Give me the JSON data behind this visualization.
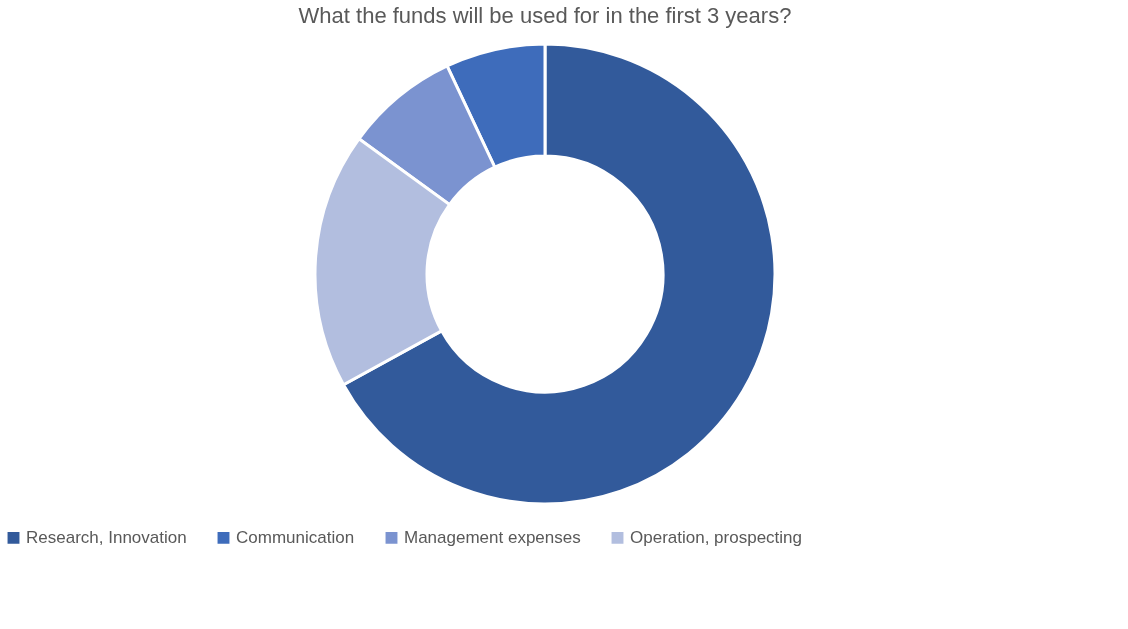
{
  "chart_data": {
    "type": "donut",
    "title": "What the funds will be used for in the first 3 years?",
    "categories": [
      "Research, Innovation",
      "Communication",
      "Management expenses",
      "Operation, prospecting"
    ],
    "values": [
      67,
      7,
      8,
      18
    ],
    "colors": [
      "#325a9b",
      "#3e6cbb",
      "#7b93d0",
      "#b2bedf"
    ],
    "legend": "bottom"
  }
}
